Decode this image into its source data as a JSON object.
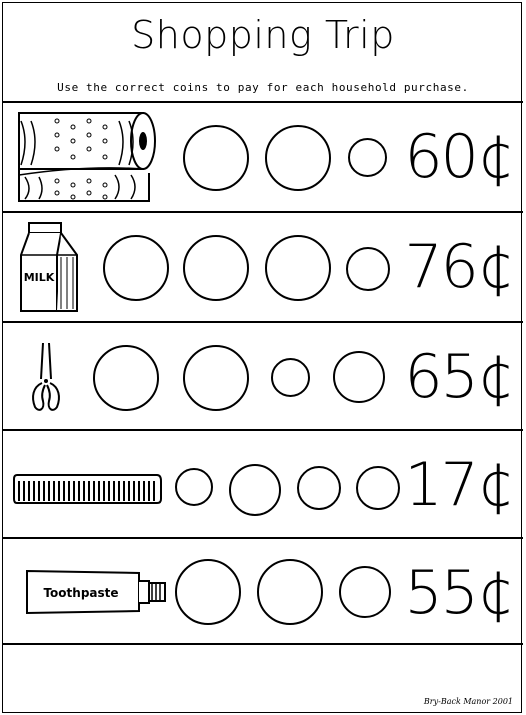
{
  "title": "Shopping Trip",
  "instructions": "Use the correct coins to pay for each household purchase.",
  "items": [
    {
      "name": "paper towels",
      "icon": "paper-towel-icon",
      "price": "60¢",
      "coins": [
        "quarter",
        "quarter",
        "dime"
      ]
    },
    {
      "name": "milk",
      "icon": "milk-carton-icon",
      "label": "MILK",
      "price": "76¢",
      "coins": [
        "quarter",
        "quarter",
        "quarter",
        "penny"
      ]
    },
    {
      "name": "scissors",
      "icon": "scissors-icon",
      "price": "65¢",
      "coins": [
        "quarter",
        "quarter",
        "dime",
        "nickel"
      ]
    },
    {
      "name": "comb",
      "icon": "comb-icon",
      "price": "17¢",
      "coins": [
        "dime",
        "nickel",
        "penny",
        "penny"
      ]
    },
    {
      "name": "toothpaste",
      "icon": "toothpaste-icon",
      "label": "Toothpaste",
      "price": "55¢",
      "coins": [
        "quarter",
        "quarter",
        "nickel"
      ]
    }
  ],
  "footer": "Bry-Back Manor 2001"
}
